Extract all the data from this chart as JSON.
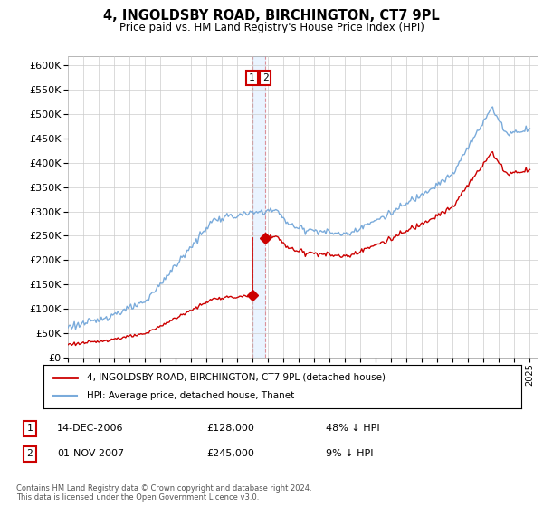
{
  "title": "4, INGOLDSBY ROAD, BIRCHINGTON, CT7 9PL",
  "subtitle": "Price paid vs. HM Land Registry's House Price Index (HPI)",
  "legend_line1": "4, INGOLDSBY ROAD, BIRCHINGTON, CT7 9PL (detached house)",
  "legend_line2": "HPI: Average price, detached house, Thanet",
  "sale1_date": "14-DEC-2006",
  "sale1_price": 128000,
  "sale1_label": "1",
  "sale1_year": 2006.96,
  "sale2_date": "01-NOV-2007",
  "sale2_price": 245000,
  "sale2_label": "2",
  "sale2_year": 2007.83,
  "footnote": "Contains HM Land Registry data © Crown copyright and database right 2024.\nThis data is licensed under the Open Government Licence v3.0.",
  "table_row1": [
    "1",
    "14-DEC-2006",
    "£128,000",
    "48% ↓ HPI"
  ],
  "table_row2": [
    "2",
    "01-NOV-2007",
    "£245,000",
    "9% ↓ HPI"
  ],
  "red_color": "#cc0000",
  "blue_color": "#7aabdb",
  "background_color": "#ffffff",
  "grid_color": "#cccccc",
  "ylim_max": 620000,
  "xlim_start": 1995.0,
  "xlim_end": 2025.5
}
